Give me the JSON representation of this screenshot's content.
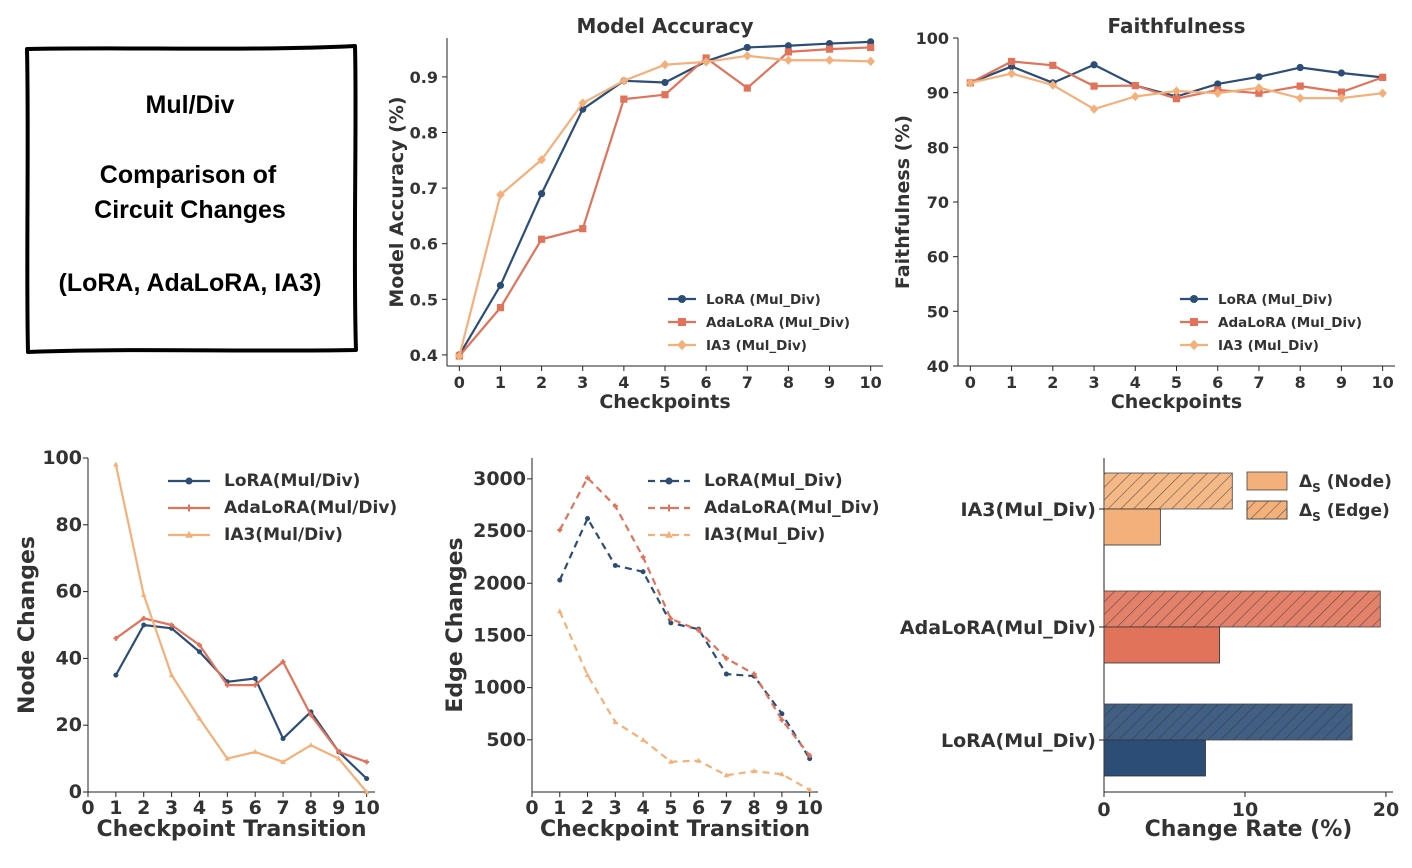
{
  "summary_box": {
    "line1": "Mul/Div",
    "line2": "Comparison of",
    "line3": "Circuit Changes",
    "line4": "(LoRA, AdaLoRA, IA3)"
  },
  "colors": {
    "lora": "#2c4d75",
    "adalora": "#e0735a",
    "ia3": "#f4b07a"
  },
  "chart_data": [
    {
      "id": "accuracy",
      "type": "line",
      "title": "Model Accuracy",
      "xlabel": "Checkpoints",
      "ylabel": "Model Accuracy (%)",
      "xlim": [
        -0.3,
        10.3
      ],
      "ylim": [
        0.38,
        0.97
      ],
      "xticks": [
        0,
        1,
        2,
        3,
        4,
        5,
        6,
        7,
        8,
        9,
        10
      ],
      "yticks": [
        0.4,
        0.5,
        0.6,
        0.7,
        0.8,
        0.9
      ],
      "legend": "lower-right",
      "x": [
        0,
        1,
        2,
        3,
        4,
        5,
        6,
        7,
        8,
        9,
        10
      ],
      "series": [
        {
          "name": "LoRA (Mul_Div)",
          "color": "#2c4d75",
          "marker": "circle",
          "values": [
            0.4,
            0.525,
            0.69,
            0.842,
            0.893,
            0.89,
            0.928,
            0.953,
            0.956,
            0.96,
            0.963
          ]
        },
        {
          "name": "AdaLoRA (Mul_Div)",
          "color": "#e0735a",
          "marker": "square",
          "values": [
            0.398,
            0.485,
            0.608,
            0.627,
            0.86,
            0.868,
            0.934,
            0.88,
            0.945,
            0.95,
            0.953
          ]
        },
        {
          "name": "IA3 (Mul_Div)",
          "color": "#f4b07a",
          "marker": "diamond",
          "values": [
            0.398,
            0.688,
            0.751,
            0.853,
            0.893,
            0.922,
            0.927,
            0.938,
            0.93,
            0.93,
            0.928
          ]
        }
      ]
    },
    {
      "id": "faithfulness",
      "type": "line",
      "title": "Faithfulness",
      "xlabel": "Checkpoints",
      "ylabel": "Faithfulness (%)",
      "xlim": [
        -0.3,
        10.3
      ],
      "ylim": [
        40,
        100
      ],
      "xticks": [
        0,
        1,
        2,
        3,
        4,
        5,
        6,
        7,
        8,
        9,
        10
      ],
      "yticks": [
        40,
        50,
        60,
        70,
        80,
        90,
        100
      ],
      "legend": "lower-right",
      "x": [
        0,
        1,
        2,
        3,
        4,
        5,
        6,
        7,
        8,
        9,
        10
      ],
      "series": [
        {
          "name": "LoRA (Mul_Div)",
          "color": "#2c4d75",
          "marker": "circle",
          "values": [
            91.8,
            94.8,
            91.8,
            95.1,
            91.3,
            89.3,
            91.6,
            92.9,
            94.6,
            93.6,
            92.8
          ]
        },
        {
          "name": "AdaLoRA (Mul_Div)",
          "color": "#e0735a",
          "marker": "square",
          "values": [
            91.8,
            95.7,
            95.0,
            91.2,
            91.3,
            88.9,
            90.5,
            89.9,
            91.2,
            90.1,
            92.8
          ]
        },
        {
          "name": "IA3 (Mul_Div)",
          "color": "#f4b07a",
          "marker": "diamond",
          "values": [
            91.8,
            93.5,
            91.4,
            87.0,
            89.3,
            90.3,
            89.9,
            90.9,
            89.0,
            89.0,
            89.9
          ]
        }
      ]
    },
    {
      "id": "node_changes",
      "type": "line",
      "xlabel": "Checkpoint Transition",
      "ylabel": "Node Changes",
      "xlim": [
        0,
        10.3
      ],
      "ylim": [
        0,
        100
      ],
      "xticks": [
        0,
        1,
        2,
        3,
        4,
        5,
        6,
        7,
        8,
        9,
        10
      ],
      "yticks": [
        0,
        20,
        40,
        60,
        80,
        100
      ],
      "legend": "upper-right",
      "x": [
        1,
        2,
        3,
        4,
        5,
        6,
        7,
        8,
        9,
        10
      ],
      "series": [
        {
          "name": "LoRA(Mul/Div)",
          "color": "#2c4d75",
          "marker": "dot",
          "values": [
            35,
            50,
            49,
            42,
            33,
            34,
            16,
            24,
            12,
            4
          ]
        },
        {
          "name": "AdaLoRA(Mul/Div)",
          "color": "#e0735a",
          "marker": "plus",
          "values": [
            46,
            52,
            50,
            44,
            32,
            32,
            39,
            23,
            12,
            9
          ]
        },
        {
          "name": "IA3(Mul/Div)",
          "color": "#f4b07a",
          "marker": "triangle",
          "values": [
            98,
            59,
            35,
            22,
            10,
            12,
            9,
            14,
            10,
            0
          ]
        }
      ]
    },
    {
      "id": "edge_changes",
      "type": "line",
      "xlabel": "Checkpoint Transition",
      "ylabel": "Edge Changes",
      "xlim": [
        0,
        10.3
      ],
      "ylim": [
        0,
        3200
      ],
      "xticks": [
        0,
        1,
        2,
        3,
        4,
        5,
        6,
        7,
        8,
        9,
        10
      ],
      "yticks": [
        500,
        1000,
        1500,
        2000,
        2500,
        3000
      ],
      "legend": "upper-right",
      "line_style": "dashed",
      "x": [
        1,
        2,
        3,
        4,
        5,
        6,
        7,
        8,
        9,
        10
      ],
      "series": [
        {
          "name": "LoRA(Mul_Div)",
          "color": "#2c4d75",
          "marker": "dot",
          "values": [
            2030,
            2620,
            2170,
            2110,
            1620,
            1560,
            1130,
            1110,
            750,
            320
          ]
        },
        {
          "name": "AdaLoRA(Mul_Div)",
          "color": "#e0735a",
          "marker": "plus",
          "values": [
            2510,
            3010,
            2740,
            2250,
            1660,
            1550,
            1280,
            1130,
            690,
            350
          ]
        },
        {
          "name": "IA3(Mul_Div)",
          "color": "#f4b07a",
          "marker": "triangle",
          "values": [
            1730,
            1120,
            670,
            500,
            290,
            300,
            160,
            200,
            170,
            20
          ]
        }
      ]
    },
    {
      "id": "change_rate",
      "type": "bar",
      "orientation": "horizontal",
      "xlabel": "Change Rate (%)",
      "xlim": [
        0,
        20.5
      ],
      "xticks": [
        0,
        10,
        20
      ],
      "categories": [
        "IA3(Mul_Div)",
        "AdaLoRA(Mul_Div)",
        "LoRA(Mul_Div)"
      ],
      "legend": "upper-right",
      "series": [
        {
          "name": "Δ_S (Node)",
          "legend_label": "Δ",
          "legend_sub": "S",
          "legend_suffix": " (Node)",
          "hatch": false,
          "values": [
            4.0,
            8.2,
            7.2
          ]
        },
        {
          "name": "Δ_S (Edge)",
          "legend_label": "Δ",
          "legend_sub": "S",
          "legend_suffix": " (Edge)",
          "hatch": true,
          "values": [
            9.1,
            19.6,
            17.6
          ]
        }
      ],
      "bar_colors": [
        "#f4b07a",
        "#e0735a",
        "#2c4d75"
      ]
    }
  ]
}
